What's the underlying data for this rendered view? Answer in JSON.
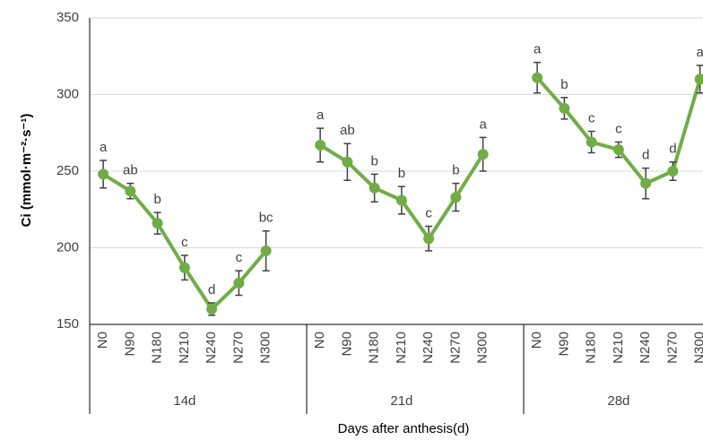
{
  "chart_data": {
    "type": "line",
    "y_label": "Ci (mmol·m⁻²·s⁻¹)",
    "x_label": "Days after anthesis(d)",
    "groups": [
      "14d",
      "21d",
      "28d"
    ],
    "categories": [
      "N0",
      "N90",
      "N180",
      "N210",
      "N240",
      "N270",
      "N300",
      null,
      "N0",
      "N90",
      "N180",
      "N210",
      "N240",
      "N270",
      "N300",
      null,
      "N0",
      "N90",
      "N180",
      "N210",
      "N240",
      "N270",
      "N300",
      null
    ],
    "series": [
      {
        "color": "#70ad47",
        "values": [
          248,
          237,
          216,
          187,
          160,
          177,
          198,
          null,
          267,
          256,
          239,
          231,
          206,
          233,
          261,
          null,
          311,
          291,
          269,
          264,
          242,
          250,
          310,
          null
        ],
        "errors": [
          9,
          5,
          7,
          8,
          4,
          8,
          13,
          null,
          11,
          12,
          9,
          9,
          8,
          9,
          11,
          null,
          10,
          7,
          7,
          5,
          10,
          6,
          9,
          null
        ],
        "significance": [
          "a",
          "ab",
          "b",
          "c",
          "d",
          "c",
          "bc",
          null,
          "a",
          "ab",
          "b",
          "b",
          "c",
          "b",
          "a",
          null,
          "a",
          "b",
          "c",
          "c",
          "d",
          "d",
          "a",
          null
        ]
      }
    ],
    "ylim": [
      150,
      350
    ],
    "yticks": [
      150,
      200,
      250,
      300,
      350
    ],
    "grid": true
  }
}
